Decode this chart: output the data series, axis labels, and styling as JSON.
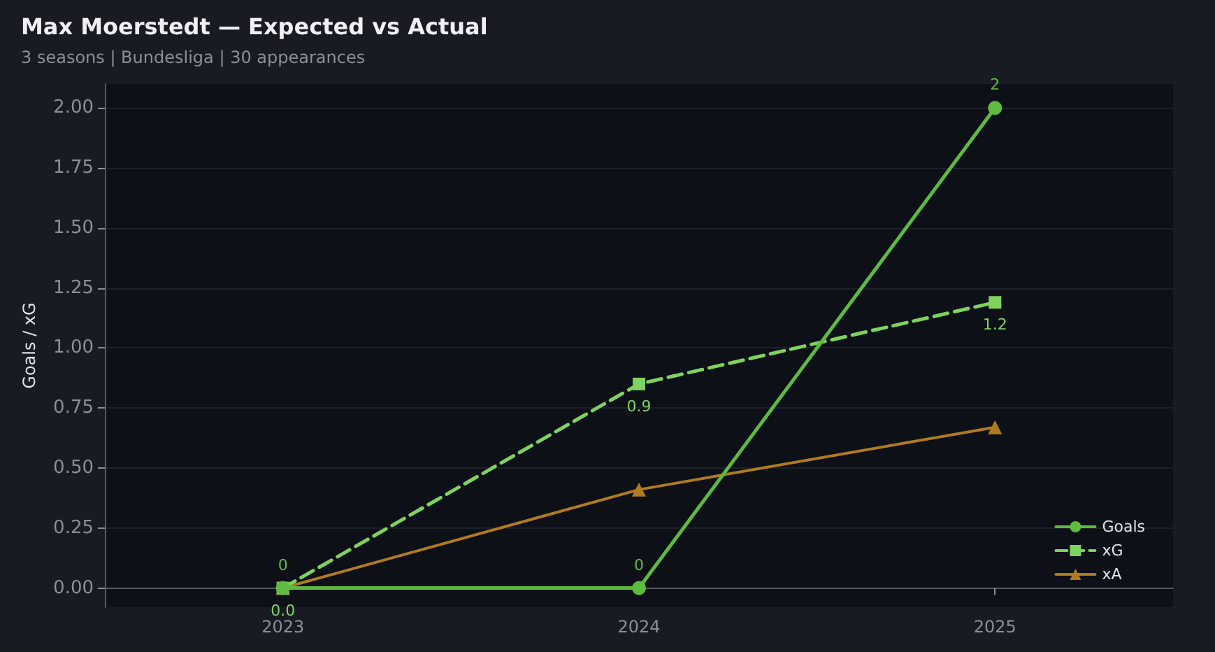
{
  "chart_data": {
    "type": "line",
    "title": "Max Moerstedt — Expected vs Actual",
    "subtitle": "3 seasons | Bundesliga | 30 appearances",
    "ylabel": "Goals / xG",
    "categories": [
      "2023",
      "2024",
      "2025"
    ],
    "series": [
      {
        "name": "Goals",
        "color": "#5dbb3f",
        "values": [
          0,
          0,
          2
        ],
        "marker": "circle",
        "line_style": "solid",
        "value_labels": [
          "0",
          "0",
          "2"
        ]
      },
      {
        "name": "xG",
        "color": "#7ed35e",
        "values": [
          0,
          0.85,
          1.19
        ],
        "marker": "square",
        "line_style": "dashed",
        "value_labels": [
          "0.0",
          "0.9",
          "1.2"
        ]
      },
      {
        "name": "xA",
        "color": "#b07b1e",
        "values": [
          0,
          0.41,
          0.67
        ],
        "marker": "triangle",
        "line_style": "solid"
      }
    ],
    "ylim": [
      -0.08,
      2.1
    ],
    "yticks": [
      {
        "value": 0,
        "label": "0.00"
      },
      {
        "value": 0.25,
        "label": "0.25"
      },
      {
        "value": 0.5,
        "label": "0.50"
      },
      {
        "value": 0.75,
        "label": "0.75"
      },
      {
        "value": 1,
        "label": "1.00"
      },
      {
        "value": 1.25,
        "label": "1.25"
      },
      {
        "value": 1.5,
        "label": "1.50"
      },
      {
        "value": 1.75,
        "label": "1.75"
      },
      {
        "value": 2,
        "label": "2.00"
      }
    ],
    "grid": "y",
    "legend": "bottom right"
  }
}
